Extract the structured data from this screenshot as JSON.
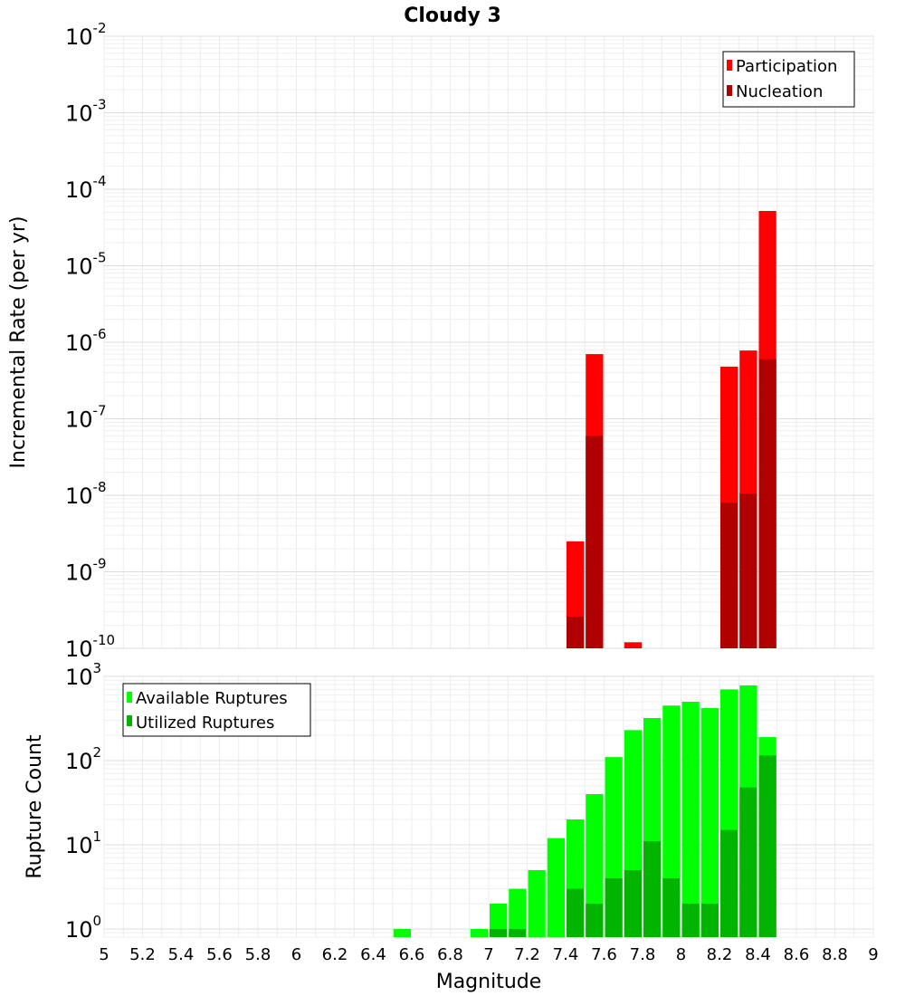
{
  "chart_data": [
    {
      "type": "bar",
      "title": "Cloudy 3",
      "xlabel": "",
      "ylabel": "Incremental Rate (per yr)",
      "yscale": "log",
      "xlim": [
        5,
        9
      ],
      "ylim": [
        1e-10,
        0.01
      ],
      "ytick_base": "10",
      "yticks": [
        {
          "value": 1e-10,
          "exp": "-10"
        },
        {
          "value": 1e-09,
          "exp": "-9"
        },
        {
          "value": 1e-08,
          "exp": "-8"
        },
        {
          "value": 1e-07,
          "exp": "-7"
        },
        {
          "value": 1e-06,
          "exp": "-6"
        },
        {
          "value": 1e-05,
          "exp": "-5"
        },
        {
          "value": 0.0001,
          "exp": "-4"
        },
        {
          "value": 0.001,
          "exp": "-3"
        },
        {
          "value": 0.01,
          "exp": "-2"
        }
      ],
      "bin_width": 0.1,
      "legend_position": "top-right",
      "grid": true,
      "series": [
        {
          "name": "Participation",
          "color": "#ff0000",
          "x": [
            7.45,
            7.55,
            7.75,
            8.25,
            8.35,
            8.45
          ],
          "values": [
            2.5e-09,
            7e-07,
            1.2e-10,
            4.8e-07,
            7.8e-07,
            5.2e-05
          ]
        },
        {
          "name": "Nucleation",
          "color": "#b00000",
          "x": [
            7.45,
            7.55,
            8.25,
            8.35,
            8.45
          ],
          "values": [
            2.6e-10,
            6e-08,
            8e-09,
            1.05e-08,
            6e-07
          ]
        }
      ]
    },
    {
      "type": "bar",
      "title": "",
      "xlabel": "Magnitude",
      "ylabel": "Rupture Count",
      "yscale": "log",
      "xlim": [
        5,
        9
      ],
      "ylim": [
        0.8,
        1000
      ],
      "ytick_base": "10",
      "yticks": [
        {
          "value": 1,
          "exp": "0"
        },
        {
          "value": 10,
          "exp": "1"
        },
        {
          "value": 100,
          "exp": "2"
        },
        {
          "value": 1000,
          "exp": "3"
        }
      ],
      "xticks": [
        "5",
        "5.2",
        "5.4",
        "5.6",
        "5.8",
        "6",
        "6.2",
        "6.4",
        "6.6",
        "6.8",
        "7",
        "7.2",
        "7.4",
        "7.6",
        "7.8",
        "8",
        "8.2",
        "8.4",
        "8.6",
        "8.8",
        "9"
      ],
      "bin_width": 0.1,
      "legend_position": "top-left",
      "grid": true,
      "series": [
        {
          "name": "Available Ruptures",
          "color": "#00ff00",
          "x": [
            6.55,
            6.95,
            7.05,
            7.15,
            7.25,
            7.35,
            7.45,
            7.55,
            7.65,
            7.75,
            7.85,
            7.95,
            8.05,
            8.15,
            8.25,
            8.35,
            8.45
          ],
          "values": [
            1,
            1,
            2,
            3,
            5,
            12,
            20,
            40,
            110,
            230,
            320,
            450,
            500,
            420,
            700,
            780,
            190
          ]
        },
        {
          "name": "Utilized Ruptures",
          "color": "#00b400",
          "x": [
            7.05,
            7.15,
            7.45,
            7.55,
            7.65,
            7.75,
            7.85,
            7.95,
            8.05,
            8.15,
            8.25,
            8.35,
            8.45
          ],
          "values": [
            1,
            1,
            3,
            2,
            4,
            5,
            11,
            4,
            2,
            2,
            15,
            48,
            115
          ]
        }
      ]
    }
  ]
}
